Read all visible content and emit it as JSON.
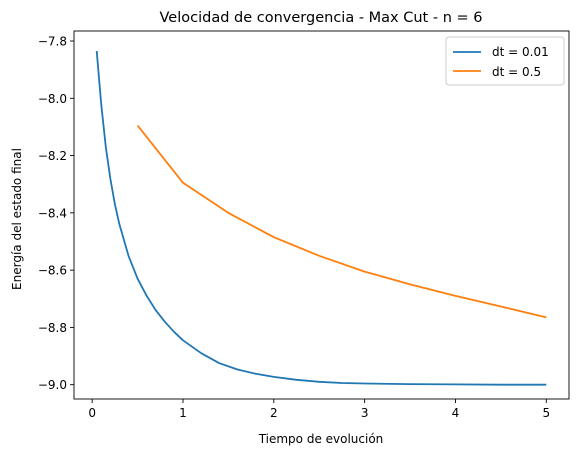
{
  "chart_data": {
    "type": "line",
    "title": "Velocidad de convergencia - Max Cut - n = 6",
    "xlabel": "Tiempo de evolución",
    "ylabel": "Energía del estado final",
    "xlim": [
      -0.2,
      5.25
    ],
    "ylim": [
      -9.05,
      -7.765
    ],
    "x_ticks": [
      0,
      1,
      2,
      3,
      4,
      5
    ],
    "x_tick_labels": [
      "0",
      "1",
      "2",
      "3",
      "4",
      "5"
    ],
    "y_ticks": [
      -7.8,
      -8.0,
      -8.2,
      -8.4,
      -8.6,
      -8.8,
      -9.0
    ],
    "y_tick_labels": [
      "−7.8",
      "−8.0",
      "−8.2",
      "−8.4",
      "−8.6",
      "−8.8",
      "−9.0"
    ],
    "grid": false,
    "legend_position": "top-right",
    "series": [
      {
        "name": "dt = 0.01",
        "color": "#1f77b4",
        "x": [
          0.05,
          0.1,
          0.15,
          0.2,
          0.25,
          0.3,
          0.4,
          0.5,
          0.6,
          0.7,
          0.8,
          0.9,
          1.0,
          1.2,
          1.4,
          1.6,
          1.8,
          2.0,
          2.25,
          2.5,
          2.75,
          3.0,
          3.5,
          4.0,
          4.5,
          5.0
        ],
        "y": [
          -7.835,
          -8.02,
          -8.17,
          -8.28,
          -8.37,
          -8.44,
          -8.55,
          -8.63,
          -8.69,
          -8.74,
          -8.78,
          -8.815,
          -8.845,
          -8.89,
          -8.925,
          -8.947,
          -8.962,
          -8.973,
          -8.983,
          -8.99,
          -8.994,
          -8.996,
          -8.998,
          -8.999,
          -9.0,
          -9.0
        ]
      },
      {
        "name": "dt = 0.5",
        "color": "#ff7f0e",
        "x": [
          0.5,
          1.0,
          1.5,
          2.0,
          2.5,
          3.0,
          3.5,
          4.0,
          4.5,
          5.0
        ],
        "y": [
          -8.095,
          -8.295,
          -8.4,
          -8.485,
          -8.55,
          -8.605,
          -8.65,
          -8.69,
          -8.727,
          -8.765
        ]
      }
    ]
  }
}
